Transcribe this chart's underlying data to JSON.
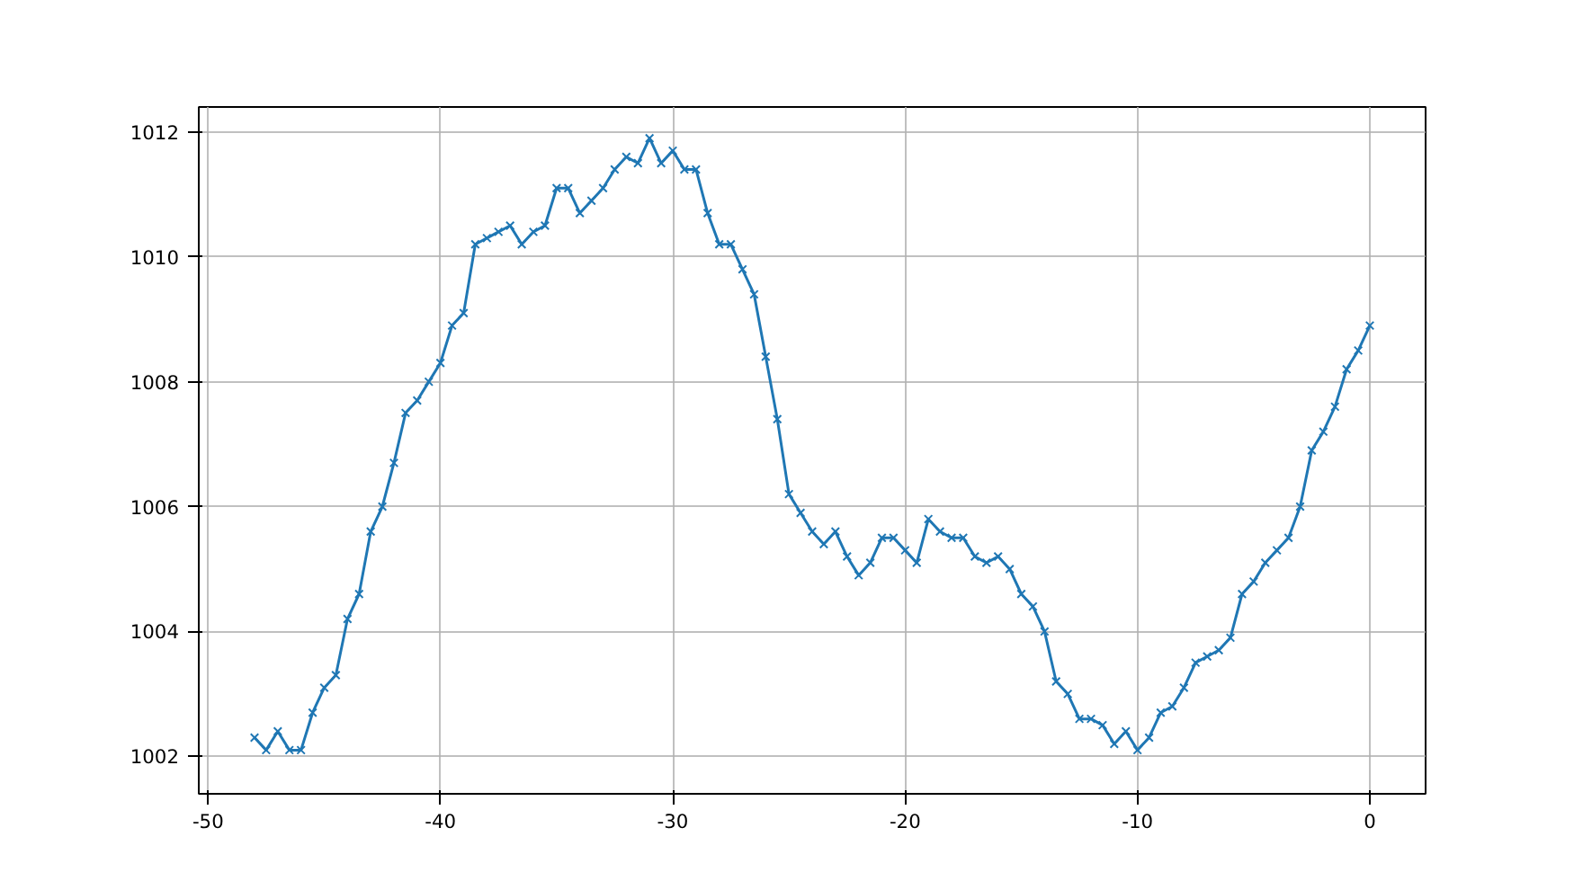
{
  "chart_data": {
    "type": "line",
    "marker": "cross",
    "line_style": "solid",
    "grid": true,
    "x": [
      -48,
      -47.5,
      -47,
      -46.5,
      -46,
      -45.5,
      -45,
      -44.5,
      -44,
      -43.5,
      -43,
      -42.5,
      -42,
      -41.5,
      -41,
      -40.5,
      -40,
      -39.5,
      -39,
      -38.5,
      -38,
      -37.5,
      -37,
      -36.5,
      -36,
      -35.5,
      -35,
      -34.5,
      -34,
      -33.5,
      -33,
      -32.5,
      -32,
      -31.5,
      -31,
      -30.5,
      -30,
      -29.5,
      -29,
      -28.5,
      -28,
      -27.5,
      -27,
      -26.5,
      -26,
      -25.5,
      -25,
      -24.5,
      -24,
      -23.5,
      -23,
      -22.5,
      -22,
      -21.5,
      -21,
      -20.5,
      -20,
      -19.5,
      -19,
      -18.5,
      -18,
      -17.5,
      -17,
      -16.5,
      -16,
      -15.5,
      -15,
      -14.5,
      -14,
      -13.5,
      -13,
      -12.5,
      -12,
      -11.5,
      -11,
      -10.5,
      -10,
      -9.5,
      -9,
      -8.5,
      -8,
      -7.5,
      -7,
      -6.5,
      -6,
      -5.5,
      -5,
      -4.5,
      -4,
      -3.5,
      -3,
      -2.5,
      -2,
      -1.5,
      -1,
      -0.5,
      0
    ],
    "series": [
      {
        "color": "#1f77b4",
        "values": [
          1002.3,
          1002.1,
          1002.4,
          1002.1,
          1002.1,
          1002.7,
          1003.1,
          1003.3,
          1004.2,
          1004.6,
          1005.6,
          1006.0,
          1006.7,
          1007.5,
          1007.7,
          1008.0,
          1008.3,
          1008.9,
          1009.1,
          1010.2,
          1010.3,
          1010.4,
          1010.5,
          1010.2,
          1010.4,
          1010.5,
          1011.1,
          1011.1,
          1010.7,
          1010.9,
          1011.1,
          1011.4,
          1011.6,
          1011.5,
          1011.9,
          1011.5,
          1011.7,
          1011.4,
          1011.4,
          1010.7,
          1010.2,
          1010.2,
          1009.8,
          1009.4,
          1008.4,
          1007.4,
          1006.2,
          1005.9,
          1005.6,
          1005.4,
          1005.6,
          1005.2,
          1004.9,
          1005.1,
          1005.5,
          1005.5,
          1005.3,
          1005.1,
          1005.8,
          1005.6,
          1005.5,
          1005.5,
          1005.2,
          1005.1,
          1005.2,
          1005.0,
          1004.6,
          1004.4,
          1004.0,
          1003.2,
          1003.0,
          1002.6,
          1002.6,
          1002.5,
          1002.2,
          1002.4,
          1002.1,
          1002.3,
          1002.7,
          1002.8,
          1003.1,
          1003.5,
          1003.6,
          1003.7,
          1003.9,
          1004.6,
          1004.8,
          1005.1,
          1005.3,
          1005.5,
          1006.0,
          1006.9,
          1007.2,
          1007.6,
          1008.2,
          1008.5,
          1008.9
        ]
      }
    ],
    "xlim": [
      -50.4,
      2.4
    ],
    "ylim": [
      1001.4,
      1012.4
    ],
    "xticks": [
      -50,
      -40,
      -30,
      -20,
      -10,
      0
    ],
    "yticks": [
      1002,
      1004,
      1006,
      1008,
      1010,
      1012
    ]
  }
}
